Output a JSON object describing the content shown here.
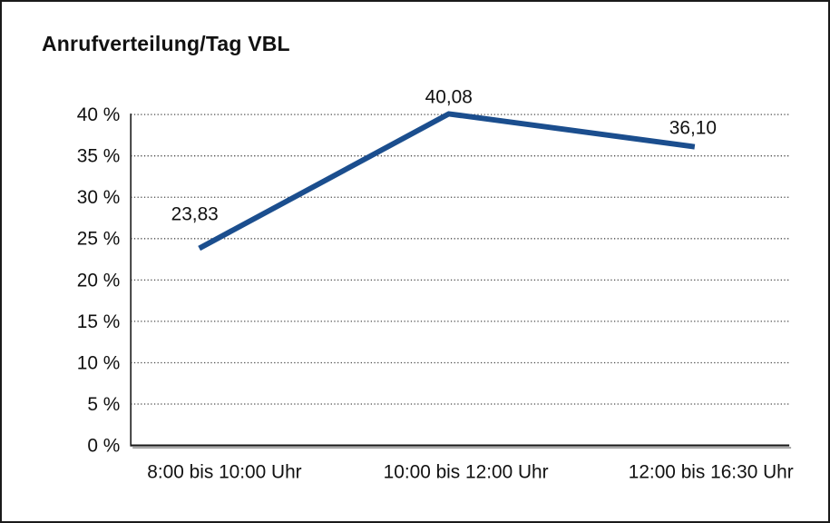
{
  "title": "Anrufverteilung/Tag VBL",
  "chart_data": {
    "type": "line",
    "title": "Anrufverteilung/Tag VBL",
    "categories": [
      "8:00 bis 10:00 Uhr",
      "10:00 bis 12:00 Uhr",
      "12:00 bis 16:30 Uhr"
    ],
    "series": [
      {
        "name": "Anrufverteilung/Tag VBL",
        "values": [
          23.83,
          40.08,
          36.1
        ]
      }
    ],
    "values": [
      23.83,
      40.08,
      36.1
    ],
    "value_labels": [
      "23,83",
      "40,08",
      "36,10"
    ],
    "xlabel": "",
    "ylabel": "",
    "ylim": [
      0,
      40
    ],
    "ytick_step": 5,
    "ytick_labels": [
      "0 %",
      "5 %",
      "10 %",
      "15 %",
      "20 %",
      "25 %",
      "30 %",
      "35 %",
      "40 %"
    ],
    "grid": "horizontal-dotted",
    "legend_position": "none",
    "line_color": "#1b4e8e",
    "text_color": "#111111",
    "grid_color": "#4a4a4a",
    "axis_color": "#1a1a1a",
    "axis_shadow_color": "#9a9a9a",
    "background_color": "#ffffff",
    "border_color": "#1a1a1a"
  }
}
